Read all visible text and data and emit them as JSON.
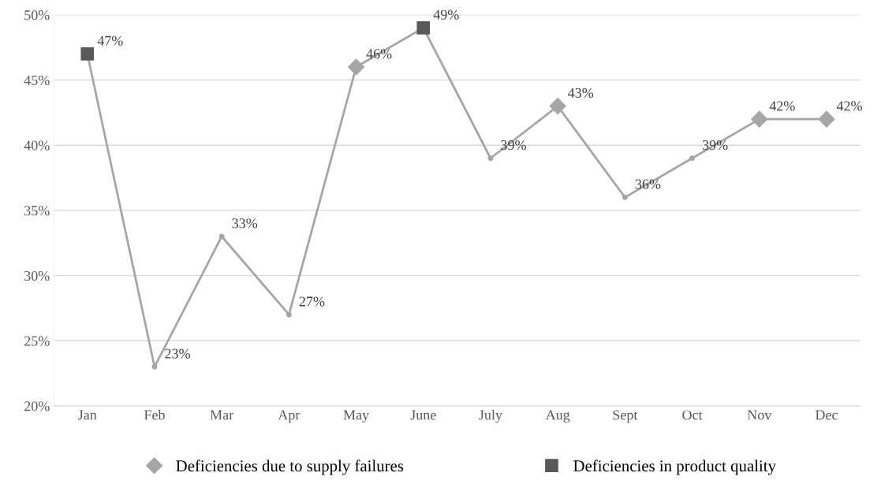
{
  "chart_data": {
    "type": "line",
    "categories": [
      "Jan",
      "Feb",
      "Mar",
      "Apr",
      "May",
      "June",
      "July",
      "Aug",
      "Sept",
      "Oct",
      "Nov",
      "Dec"
    ],
    "series": [
      {
        "color": "#a6a6a6",
        "marker": "circle",
        "values": [
          47,
          23,
          33,
          27,
          46,
          49,
          39,
          43,
          36,
          39,
          42,
          42
        ],
        "value_labels": [
          "47%",
          "23%",
          "33%",
          "27%",
          "46%",
          "49%",
          "39%",
          "43%",
          "36%",
          "39%",
          "42%",
          "42%"
        ]
      },
      {
        "type": "scatter",
        "name": "Deficiencies due to supply failures",
        "color": "#a6a6a6",
        "marker": "diamond",
        "values": [
          null,
          null,
          null,
          null,
          46,
          null,
          null,
          43,
          null,
          null,
          42,
          42
        ]
      },
      {
        "type": "scatter",
        "name": "Deficiencies in product quality",
        "color": "#595959",
        "marker": "square",
        "values": [
          47,
          null,
          null,
          null,
          null,
          49,
          null,
          null,
          null,
          null,
          null,
          null
        ]
      }
    ],
    "ylim": [
      20,
      50
    ],
    "yticks": [
      {
        "value": 20,
        "label": "20%"
      },
      {
        "value": 25,
        "label": "25%"
      },
      {
        "value": 30,
        "label": "30%"
      },
      {
        "value": 35,
        "label": "35%"
      },
      {
        "value": 40,
        "label": "40%"
      },
      {
        "value": 45,
        "label": "45%"
      },
      {
        "value": 50,
        "label": "50%"
      }
    ],
    "grid": "y",
    "legend": "bottom"
  }
}
